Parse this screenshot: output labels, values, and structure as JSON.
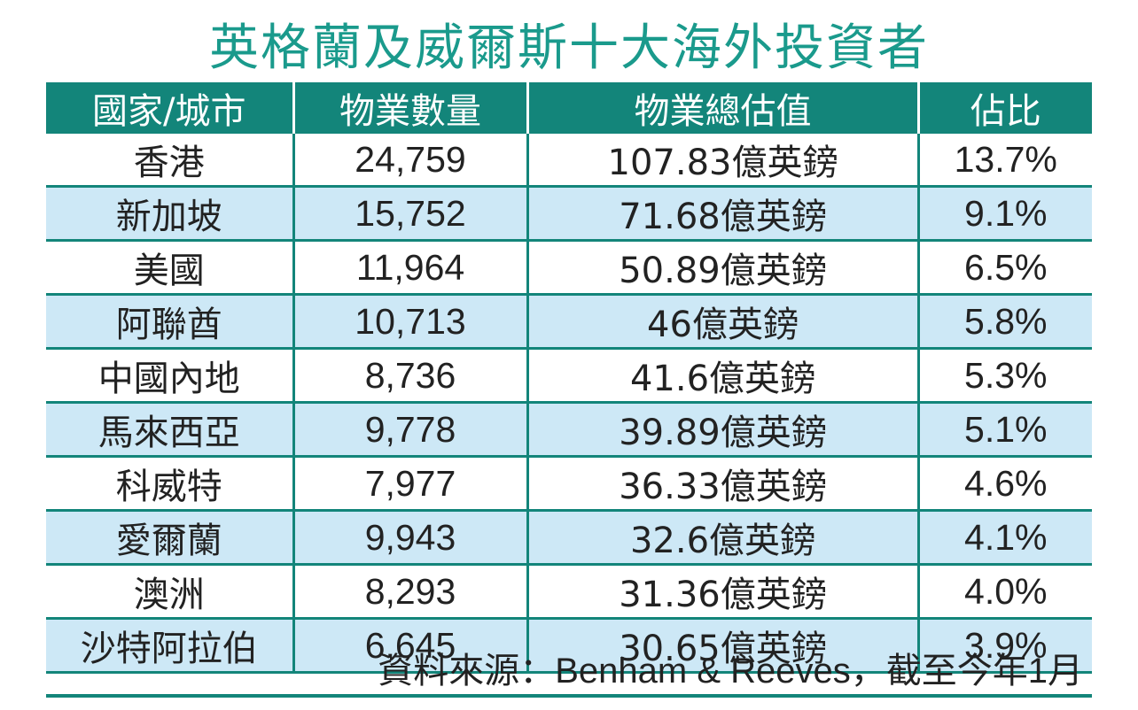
{
  "title": "英格蘭及威爾斯十大海外投資者",
  "source": "資料來源：Benham & Reeves，截至今年1月",
  "colors": {
    "title": "#1a9a8c",
    "header_bg": "#13857a",
    "row_alt": "#cde8f6",
    "grid": "#13857a"
  },
  "chart_data": {
    "type": "table",
    "title": "英格蘭及威爾斯十大海外投資者",
    "columns": [
      "國家/城市",
      "物業數量",
      "物業總估值",
      "佔比"
    ],
    "rows": [
      [
        "香港",
        "24,759",
        "107.83億英鎊",
        "13.7%"
      ],
      [
        "新加坡",
        "15,752",
        "71.68億英鎊",
        "9.1%"
      ],
      [
        "美國",
        "11,964",
        "50.89億英鎊",
        "6.5%"
      ],
      [
        "阿聯酋",
        "10,713",
        "46億英鎊",
        "5.8%"
      ],
      [
        "中國內地",
        "8,736",
        "41.6億英鎊",
        "5.3%"
      ],
      [
        "馬來西亞",
        "9,778",
        "39.89億英鎊",
        "5.1%"
      ],
      [
        "科威特",
        "7,977",
        "36.33億英鎊",
        "4.6%"
      ],
      [
        "愛爾蘭",
        "9,943",
        "32.6億英鎊",
        "4.1%"
      ],
      [
        "澳洲",
        "8,293",
        "31.36億英鎊",
        "4.0%"
      ],
      [
        "沙特阿拉伯",
        "6,645",
        "30.65億英鎊",
        "3.9%"
      ]
    ]
  }
}
